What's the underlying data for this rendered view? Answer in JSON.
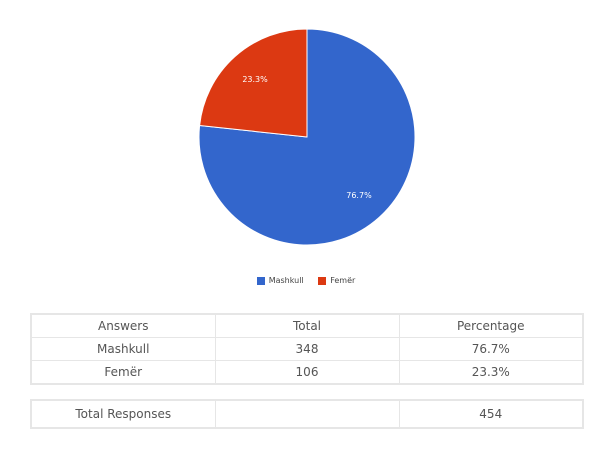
{
  "chart_data": {
    "type": "pie",
    "slices": [
      {
        "label": "Mashkull",
        "value": 76.7,
        "color": "#3366cc",
        "data_label": "76.7%"
      },
      {
        "label": "Femër",
        "value": 23.3,
        "color": "#dc3912",
        "data_label": "23.3%"
      }
    ],
    "legend_position": "bottom"
  },
  "table": {
    "headers": [
      "Answers",
      "Total",
      "Percentage"
    ],
    "rows": [
      [
        "Mashkull",
        "348",
        "76.7%"
      ],
      [
        "Femër",
        "106",
        "23.3%"
      ]
    ],
    "total": {
      "label": "Total Responses",
      "blank": "",
      "value": "454"
    }
  }
}
